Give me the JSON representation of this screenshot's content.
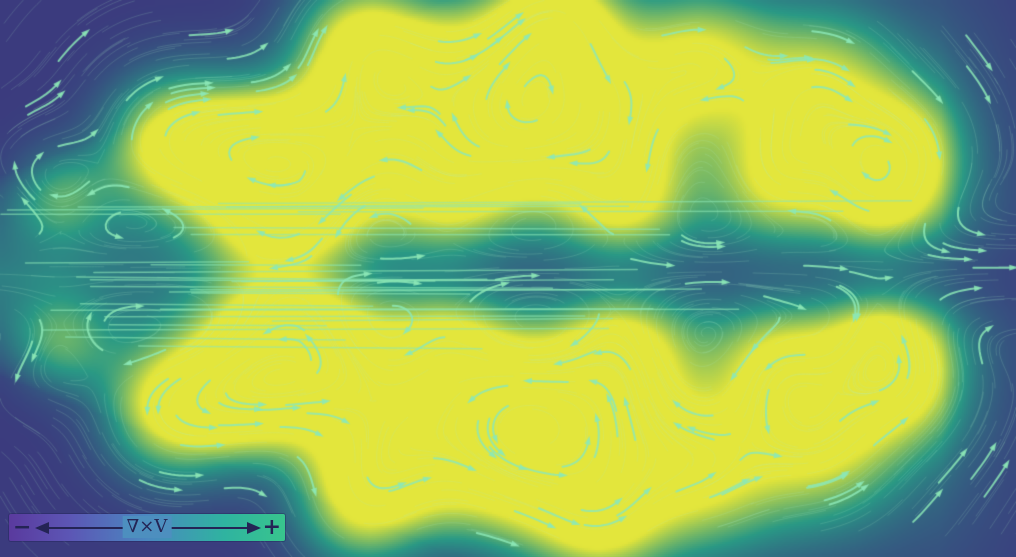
{
  "figure": {
    "kind": "vorticity-streamline-field",
    "colors": {
      "background_low": "#3b3b7e",
      "mid": "#2a9a86",
      "high": "#e3e63c",
      "streamline": "#8ce8b6",
      "legend_text": "#242455"
    }
  },
  "legend": {
    "min_symbol": "−",
    "max_symbol": "+",
    "label": "∇×V"
  }
}
